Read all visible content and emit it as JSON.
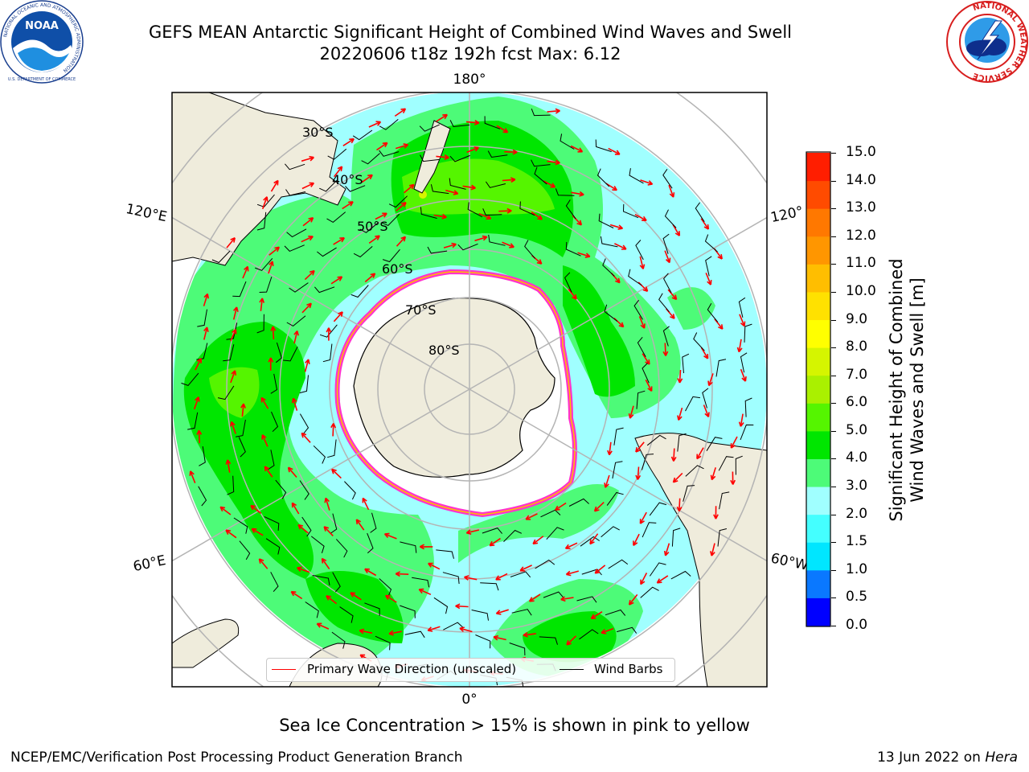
{
  "header": {
    "title_line1": "GEFS MEAN Antarctic Significant Height of Combined Wind Waves and Swell",
    "title_line2": "20220606 t18z 192h fcst   Max: 6.12"
  },
  "logos": {
    "noaa_text": "NOAA",
    "noaa_ring_text": "NATIONAL OCEANIC AND ATMOSPHERIC ADMINISTRATION",
    "noaa_bottom_text": "U.S. DEPARTMENT OF COMMERCE",
    "nws_ring_text": "NATIONAL WEATHER SERVICE"
  },
  "map": {
    "longitude_labels": {
      "top": "180°",
      "upper_left": "120°E",
      "upper_right": "120°",
      "lower_left": "60°E",
      "lower_right": "60°W",
      "bottom": "0°"
    },
    "latitude_labels": [
      "30°S",
      "40°S",
      "50°S",
      "60°S",
      "70°S",
      "80°S"
    ],
    "colors": {
      "land": "#efecdc",
      "ice": "#ffffff",
      "ice_edge": "#ff33cc",
      "grid": "#b4b4b4",
      "wave_arrow": "#ff0000",
      "wind_barb": "#000000"
    }
  },
  "colorbar": {
    "label_line1": "Significant Height of Combined",
    "label_line2": "Wind Waves and Swell [m]",
    "ticks": [
      "0.0",
      "0.5",
      "1.0",
      "1.5",
      "2.0",
      "3.0",
      "4.0",
      "5.0",
      "6.0",
      "7.0",
      "8.0",
      "9.0",
      "10.0",
      "11.0",
      "12.0",
      "13.0",
      "14.0",
      "15.0"
    ],
    "colors": [
      "#0000ff",
      "#0a78ff",
      "#00e6ff",
      "#44ffff",
      "#a0ffff",
      "#4dfb78",
      "#00e600",
      "#55f500",
      "#aaf000",
      "#d5f500",
      "#ffff00",
      "#ffe100",
      "#ffbe00",
      "#ff9600",
      "#ff7800",
      "#ff4b00",
      "#ff1e00"
    ]
  },
  "legend": {
    "wave_label": "Primary Wave Direction (unscaled)",
    "wind_label": "Wind Barbs"
  },
  "subtitle": "Sea Ice Concentration > 15% is shown in pink to yellow",
  "footer": {
    "left": "NCEP/EMC/Verification Post Processing Product Generation Branch",
    "right_date": "13 Jun 2022 on ",
    "right_machine": "Hera"
  }
}
